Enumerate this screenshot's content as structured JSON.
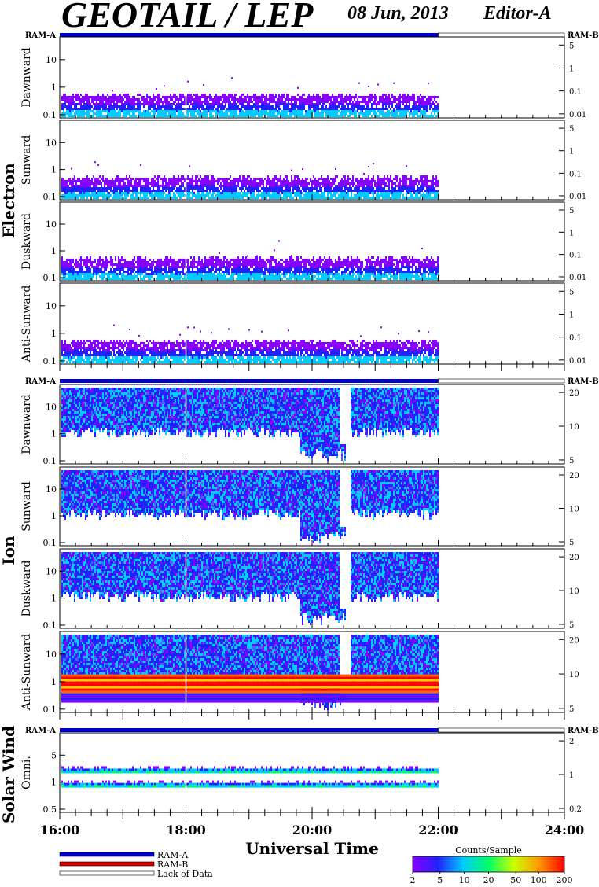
{
  "header": {
    "title": "GEOTAIL / LEP",
    "date": "08 Jun, 2013",
    "editor": "Editor-A"
  },
  "ram": {
    "a": "RAM-A",
    "b": "RAM-B"
  },
  "groups": [
    {
      "id": "electron",
      "label": "Electron",
      "panels": [
        {
          "label": "Dawnward",
          "left_ticks": [
            "10",
            "1",
            "0.1"
          ],
          "right_ticks": [
            "5",
            "1",
            "0.1",
            "0.01"
          ]
        },
        {
          "label": "Sunward",
          "left_ticks": [
            "10",
            "1",
            "0.1"
          ],
          "right_ticks": [
            "5",
            "1",
            "0.1",
            "0.01"
          ]
        },
        {
          "label": "Duskward",
          "left_ticks": [
            "10",
            "1",
            "0.1"
          ],
          "right_ticks": [
            "5",
            "1",
            "0.1",
            "0.01"
          ]
        },
        {
          "label": "Anti-Sunward",
          "left_ticks": [
            "10",
            "1",
            "0.1"
          ],
          "right_ticks": [
            "5",
            "1",
            "0.1",
            "0.01"
          ]
        }
      ]
    },
    {
      "id": "ion",
      "label": "Ion",
      "panels": [
        {
          "label": "Dawnward",
          "left_ticks": [
            "10",
            "1",
            "0.1"
          ],
          "right_ticks": [
            "20",
            "10",
            "5"
          ]
        },
        {
          "label": "Sunward",
          "left_ticks": [
            "10",
            "1",
            "0.1"
          ],
          "right_ticks": [
            "20",
            "10",
            "5"
          ]
        },
        {
          "label": "Duskward",
          "left_ticks": [
            "10",
            "1",
            "0.1"
          ],
          "right_ticks": [
            "20",
            "10",
            "5"
          ]
        },
        {
          "label": "Anti-Sunward",
          "left_ticks": [
            "10",
            "1",
            "0.1"
          ],
          "right_ticks": [
            "20",
            "10",
            "5"
          ]
        }
      ]
    },
    {
      "id": "solarwind",
      "label": "Solar Wind",
      "panels": [
        {
          "label": "Omni.",
          "left_ticks": [
            "5",
            "1",
            "0.5"
          ],
          "right_ticks": [
            "2",
            "1",
            "0.2"
          ]
        }
      ]
    }
  ],
  "chart_data": {
    "type": "heatmap",
    "xlabel": "Universal Time",
    "x_tick_labels": [
      "16:00",
      "18:00",
      "20:00",
      "22:00",
      "24:00"
    ],
    "xlim": [
      "16:00",
      "24:00"
    ],
    "data_end": "22:00",
    "log_y": true,
    "colorbar": {
      "title": "Counts/Sample",
      "ticks": [
        "2",
        "5",
        "10",
        "20",
        "50",
        "100",
        "200"
      ],
      "colors": [
        "#8800ff",
        "#2222ff",
        "#00ccff",
        "#00ff66",
        "#ccff00",
        "#ff9900",
        "#ff0000"
      ]
    },
    "legend": [
      {
        "label": "RAM-A",
        "color": "#0000cc"
      },
      {
        "label": "RAM-B",
        "color": "#dd0000"
      },
      {
        "label": "Lack of Data",
        "color": "#ffffff"
      }
    ]
  }
}
